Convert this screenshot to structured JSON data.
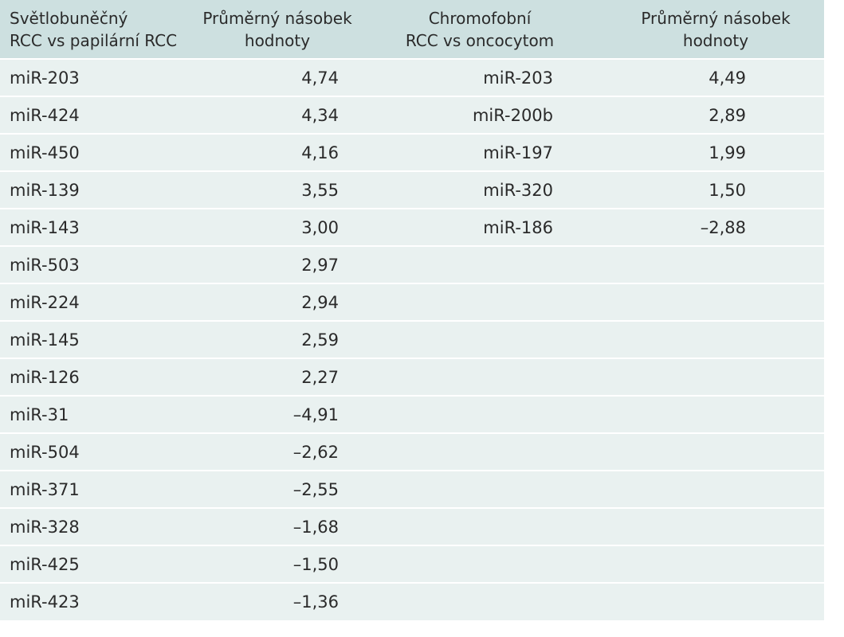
{
  "headers": [
    "Světlobuněčný\nRCC vs papilární RCC",
    "Průměrný násobek\nhodnoty",
    "Chromofobní\nRCC vs oncocytom",
    "Průměrný násobek\nhodnoty"
  ],
  "rows": [
    [
      "miR-203",
      "4,74",
      "miR-203",
      "4,49"
    ],
    [
      "miR-424",
      "4,34",
      "miR-200b",
      "2,89"
    ],
    [
      "miR-450",
      "4,16",
      "miR-197",
      "1,99"
    ],
    [
      "miR-139",
      "3,55",
      "miR-320",
      "1,50"
    ],
    [
      "miR-143",
      "3,00",
      "miR-186",
      "–2,88"
    ],
    [
      "miR-503",
      "2,97",
      "",
      ""
    ],
    [
      "miR-224",
      "2,94",
      "",
      ""
    ],
    [
      "miR-145",
      "2,59",
      "",
      ""
    ],
    [
      "miR-126",
      "2,27",
      "",
      ""
    ],
    [
      "miR-31",
      "–4,91",
      "",
      ""
    ],
    [
      "miR-504",
      "–2,62",
      "",
      ""
    ],
    [
      "miR-371",
      "–2,55",
      "",
      ""
    ],
    [
      "miR-328",
      "–1,68",
      "",
      ""
    ],
    [
      "miR-425",
      "–1,50",
      "",
      ""
    ],
    [
      "miR-423",
      "–1,36",
      "",
      ""
    ]
  ]
}
